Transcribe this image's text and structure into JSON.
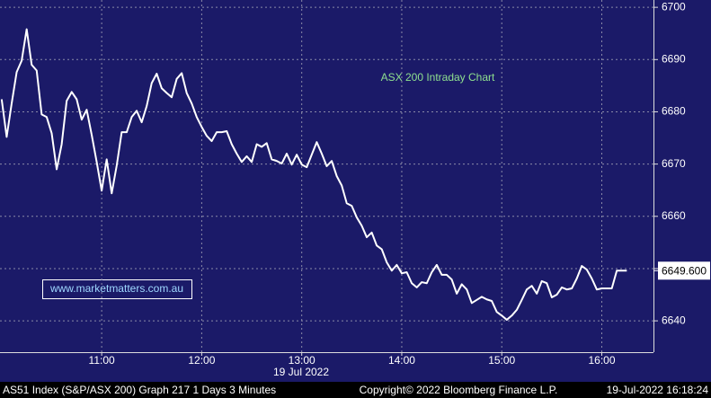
{
  "chart_data": {
    "type": "line",
    "annotation": "ASX 200 Intraday Chart",
    "watermark": "www.marketmatters.com.au",
    "date_label": "19 Jul 2022",
    "footer_left": "AS51 Index (S&P/ASX 200) Graph 217 1 Days 3 Minutes",
    "footer_center": "Copyright© 2022 Bloomberg Finance L.P.",
    "footer_right": "19-Jul-2022 16:18:24",
    "last_value_label": "6649.600",
    "color": "#ffffff",
    "grid": true,
    "xlim": [
      "09:59",
      "16:31"
    ],
    "xticks": [
      "11:00",
      "12:00",
      "13:00",
      "14:00",
      "15:00",
      "16:00"
    ],
    "ylim": [
      6634,
      6701.4
    ],
    "yticks": [
      6640,
      6650,
      6660,
      6670,
      6680,
      6690,
      6700
    ],
    "x": [
      "10:00",
      "10:03",
      "10:06",
      "10:09",
      "10:12",
      "10:15",
      "10:18",
      "10:21",
      "10:24",
      "10:27",
      "10:30",
      "10:33",
      "10:36",
      "10:39",
      "10:42",
      "10:45",
      "10:48",
      "10:51",
      "10:54",
      "10:57",
      "11:00",
      "11:03",
      "11:06",
      "11:09",
      "11:12",
      "11:15",
      "11:18",
      "11:21",
      "11:24",
      "11:27",
      "11:30",
      "11:33",
      "11:36",
      "11:39",
      "11:42",
      "11:45",
      "11:48",
      "11:51",
      "11:54",
      "11:57",
      "12:00",
      "12:03",
      "12:06",
      "12:09",
      "12:12",
      "12:15",
      "12:18",
      "12:21",
      "12:24",
      "12:27",
      "12:30",
      "12:33",
      "12:36",
      "12:39",
      "12:42",
      "12:45",
      "12:48",
      "12:51",
      "12:54",
      "12:57",
      "13:00",
      "13:03",
      "13:06",
      "13:09",
      "13:12",
      "13:15",
      "13:18",
      "13:21",
      "13:24",
      "13:27",
      "13:30",
      "13:33",
      "13:36",
      "13:39",
      "13:42",
      "13:45",
      "13:48",
      "13:51",
      "13:54",
      "13:57",
      "14:00",
      "14:03",
      "14:06",
      "14:09",
      "14:12",
      "14:15",
      "14:18",
      "14:21",
      "14:24",
      "14:27",
      "14:30",
      "14:33",
      "14:36",
      "14:39",
      "14:42",
      "14:45",
      "14:48",
      "14:51",
      "14:54",
      "14:57",
      "15:00",
      "15:03",
      "15:06",
      "15:09",
      "15:12",
      "15:15",
      "15:18",
      "15:21",
      "15:24",
      "15:27",
      "15:30",
      "15:33",
      "15:36",
      "15:39",
      "15:42",
      "15:45",
      "15:48",
      "15:51",
      "15:54",
      "15:57",
      "16:00",
      "16:03",
      "16:06",
      "16:09",
      "16:12",
      "16:15"
    ],
    "values": [
      6682.4,
      6675.2,
      6681.6,
      6687.6,
      6689.8,
      6695.8,
      6689.0,
      6687.9,
      6679.5,
      6679.0,
      6675.9,
      6669.0,
      6673.8,
      6682.1,
      6683.8,
      6682.4,
      6678.5,
      6680.4,
      6675.6,
      6670.4,
      6664.9,
      6670.9,
      6664.4,
      6669.7,
      6676.1,
      6676.1,
      6679.0,
      6680.2,
      6678.0,
      6681.1,
      6685.5,
      6687.3,
      6684.5,
      6683.6,
      6682.8,
      6686.3,
      6687.4,
      6683.6,
      6681.6,
      6679.0,
      6677.1,
      6675.4,
      6674.4,
      6676.1,
      6676.1,
      6676.3,
      6673.8,
      6672.0,
      6670.4,
      6671.5,
      6670.4,
      6673.8,
      6673.3,
      6674.0,
      6670.9,
      6670.6,
      6670.1,
      6672.0,
      6669.9,
      6671.8,
      6669.9,
      6669.4,
      6671.8,
      6674.2,
      6672.0,
      6669.6,
      6670.6,
      6667.7,
      6665.9,
      6662.5,
      6662.0,
      6659.8,
      6658.2,
      6656.0,
      6656.9,
      6654.4,
      6653.7,
      6651.2,
      6649.6,
      6650.7,
      6649.1,
      6649.3,
      6647.2,
      6646.4,
      6647.4,
      6647.2,
      6649.3,
      6650.7,
      6648.8,
      6648.8,
      6647.9,
      6645.2,
      6647.0,
      6646.0,
      6643.4,
      6644.0,
      6644.6,
      6644.1,
      6643.8,
      6641.7,
      6641.0,
      6640.2,
      6641.0,
      6642.1,
      6644.0,
      6646.0,
      6646.7,
      6645.2,
      6647.6,
      6647.2,
      6644.5,
      6645.0,
      6646.4,
      6646.0,
      6646.2,
      6648.1,
      6650.5,
      6649.8,
      6648.1,
      6646.0,
      6646.2,
      6646.2,
      6646.2,
      6649.6,
      6649.6,
      6649.6
    ]
  }
}
